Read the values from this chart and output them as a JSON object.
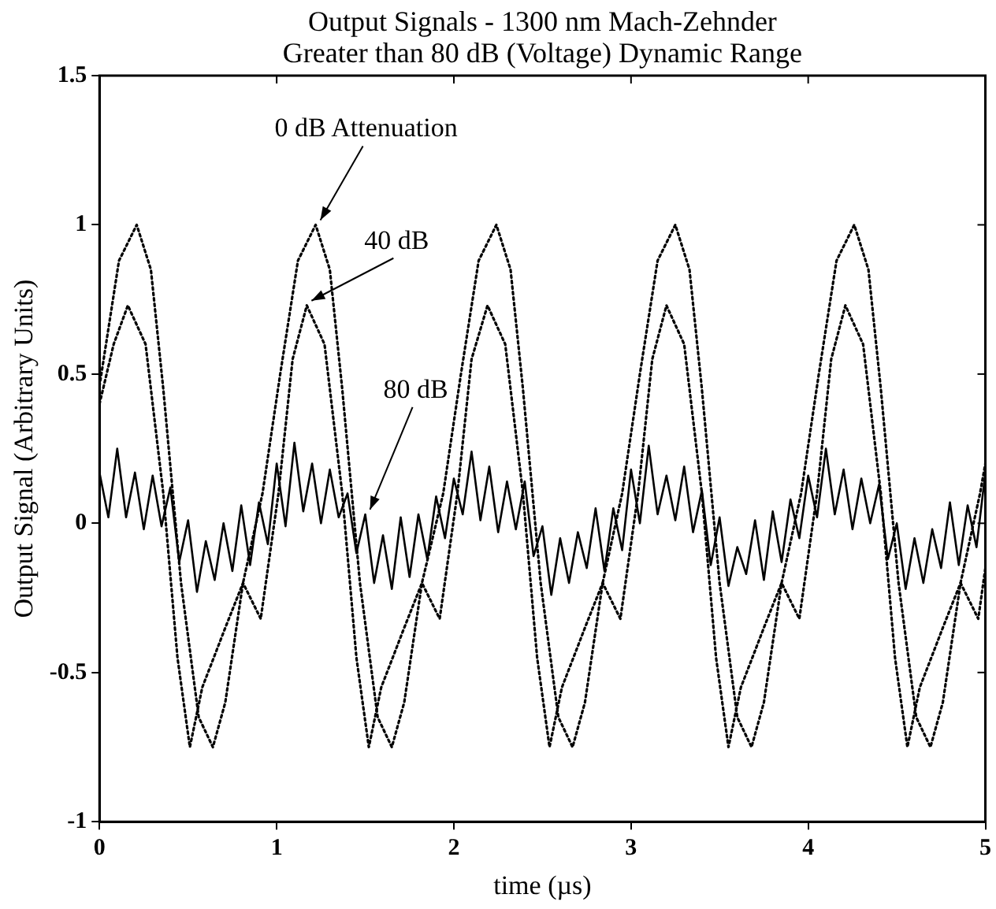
{
  "chart_data": {
    "type": "line",
    "title": "Output Signals - 1300 nm Mach-Zehnder",
    "subtitle": "Greater than 80 dB (Voltage) Dynamic Range",
    "xlabel": "time (µs)",
    "ylabel": "Output Signal (Arbitrary Units)",
    "xlim": [
      0,
      5
    ],
    "xticks": [
      0,
      1,
      2,
      3,
      4,
      5
    ],
    "ylim": [
      -1,
      1.5
    ],
    "yticks": [
      -1,
      -0.5,
      0,
      0.5,
      1,
      1.5
    ],
    "grid": false,
    "legend": false,
    "marker": "none",
    "series": [
      {
        "color": "#000000",
        "line_style": "dotted",
        "x": [
          0,
          0.11,
          0.21,
          0.29,
          0.36,
          0.46,
          0.56,
          0.64,
          0.71,
          0.81,
          0.92,
          1.02,
          1.12,
          1.22,
          1.3,
          1.37,
          1.47,
          1.57,
          1.65,
          1.72,
          1.82,
          1.94,
          2.04,
          2.14,
          2.24,
          2.32,
          2.39,
          2.49,
          2.59,
          2.67,
          2.74,
          2.84,
          2.95,
          3.05,
          3.15,
          3.25,
          3.33,
          3.4,
          3.5,
          3.6,
          3.68,
          3.75,
          3.85,
          3.96,
          4.06,
          4.16,
          4.26,
          4.34,
          4.41,
          4.51,
          4.61,
          4.69,
          4.76,
          4.86,
          4.97,
          5
        ],
        "values": [
          0.46,
          0.88,
          1.0,
          0.85,
          0.45,
          -0.2,
          -0.65,
          -0.75,
          -0.6,
          -0.2,
          0.1,
          0.5,
          0.88,
          1.0,
          0.85,
          0.45,
          -0.2,
          -0.65,
          -0.75,
          -0.6,
          -0.2,
          0.1,
          0.5,
          0.88,
          1.0,
          0.85,
          0.45,
          -0.2,
          -0.65,
          -0.75,
          -0.6,
          -0.2,
          0.1,
          0.5,
          0.88,
          1.0,
          0.85,
          0.45,
          -0.2,
          -0.65,
          -0.75,
          -0.6,
          -0.2,
          0.1,
          0.5,
          0.88,
          1.0,
          0.85,
          0.45,
          -0.2,
          -0.65,
          -0.75,
          -0.6,
          -0.2,
          0.1,
          0.2
        ]
      },
      {
        "color": "#000000",
        "line_style": "dotted",
        "x": [
          0,
          0.08,
          0.16,
          0.26,
          0.36,
          0.44,
          0.51,
          0.58,
          0.71,
          0.81,
          0.91,
          1.01,
          1.09,
          1.17,
          1.27,
          1.37,
          1.45,
          1.52,
          1.59,
          1.72,
          1.82,
          1.92,
          2.02,
          2.1,
          2.19,
          2.29,
          2.39,
          2.47,
          2.54,
          2.61,
          2.74,
          2.84,
          2.94,
          3.04,
          3.12,
          3.2,
          3.3,
          3.4,
          3.48,
          3.55,
          3.62,
          3.75,
          3.85,
          3.95,
          4.05,
          4.13,
          4.21,
          4.31,
          4.41,
          4.49,
          4.56,
          4.63,
          4.76,
          4.86,
          4.96,
          5
        ],
        "values": [
          0.4,
          0.6,
          0.73,
          0.6,
          0.1,
          -0.45,
          -0.75,
          -0.55,
          -0.35,
          -0.2,
          -0.32,
          0.1,
          0.55,
          0.73,
          0.6,
          0.1,
          -0.45,
          -0.75,
          -0.55,
          -0.35,
          -0.2,
          -0.32,
          0.1,
          0.55,
          0.73,
          0.6,
          0.1,
          -0.45,
          -0.75,
          -0.55,
          -0.35,
          -0.2,
          -0.32,
          0.1,
          0.55,
          0.73,
          0.6,
          0.1,
          -0.45,
          -0.75,
          -0.55,
          -0.35,
          -0.2,
          -0.32,
          0.1,
          0.55,
          0.73,
          0.6,
          0.1,
          -0.45,
          -0.75,
          -0.55,
          -0.35,
          -0.2,
          -0.32,
          -0.15
        ]
      },
      {
        "color": "#000000",
        "line_style": "solid",
        "x": [
          0,
          0.05,
          0.1,
          0.15,
          0.2,
          0.25,
          0.3,
          0.35,
          0.4,
          0.45,
          0.5,
          0.55,
          0.6,
          0.65,
          0.7,
          0.75,
          0.8,
          0.85,
          0.9,
          0.95,
          1,
          1.05,
          1.1,
          1.15,
          1.2,
          1.25,
          1.3,
          1.35,
          1.4,
          1.45,
          1.5,
          1.55,
          1.6,
          1.65,
          1.7,
          1.75,
          1.8,
          1.85,
          1.9,
          1.95,
          2,
          2.05,
          2.1,
          2.15,
          2.2,
          2.25,
          2.3,
          2.35,
          2.4,
          2.45,
          2.5,
          2.55,
          2.6,
          2.65,
          2.7,
          2.75,
          2.8,
          2.85,
          2.9,
          2.95,
          3,
          3.05,
          3.1,
          3.15,
          3.2,
          3.25,
          3.3,
          3.35,
          3.4,
          3.45,
          3.5,
          3.55,
          3.6,
          3.65,
          3.7,
          3.75,
          3.8,
          3.85,
          3.9,
          3.95,
          4,
          4.05,
          4.1,
          4.15,
          4.2,
          4.25,
          4.3,
          4.35,
          4.4,
          4.45,
          4.5,
          4.55,
          4.6,
          4.65,
          4.7,
          4.75,
          4.8,
          4.85,
          4.9,
          4.95,
          5
        ],
        "values": [
          0.17,
          0.02,
          0.25,
          0.02,
          0.17,
          -0.02,
          0.16,
          -0.01,
          0.12,
          -0.13,
          0.01,
          -0.23,
          -0.06,
          -0.19,
          0,
          -0.16,
          0.06,
          -0.14,
          0.07,
          -0.07,
          0.2,
          -0.01,
          0.27,
          0.04,
          0.2,
          0,
          0.18,
          0.02,
          0.1,
          -0.1,
          0.03,
          -0.2,
          -0.04,
          -0.22,
          0.02,
          -0.18,
          0.03,
          -0.12,
          0.09,
          -0.05,
          0.15,
          0.03,
          0.24,
          0.01,
          0.19,
          -0.03,
          0.14,
          -0.02,
          0.14,
          -0.11,
          -0.01,
          -0.24,
          -0.05,
          -0.2,
          -0.03,
          -0.15,
          0.05,
          -0.16,
          0.05,
          -0.09,
          0.18,
          0,
          0.26,
          0.03,
          0.16,
          0.01,
          0.19,
          -0.03,
          0.11,
          -0.14,
          0.02,
          -0.21,
          -0.08,
          -0.17,
          0.01,
          -0.19,
          0.04,
          -0.13,
          0.08,
          -0.05,
          0.16,
          0.02,
          0.25,
          0.03,
          0.18,
          -0.02,
          0.15,
          0,
          0.13,
          -0.12,
          0,
          -0.22,
          -0.05,
          -0.2,
          -0.02,
          -0.15,
          0.07,
          -0.14,
          0.06,
          -0.08,
          0.17
        ]
      }
    ],
    "annotations": [
      {
        "text": "0 dB Attenuation",
        "x": 1.22,
        "y": 1.0
      },
      {
        "text": "40 dB",
        "x": 1.17,
        "y": 0.73
      },
      {
        "text": "80 dB",
        "x": 1.5,
        "y": 0.03
      }
    ]
  }
}
